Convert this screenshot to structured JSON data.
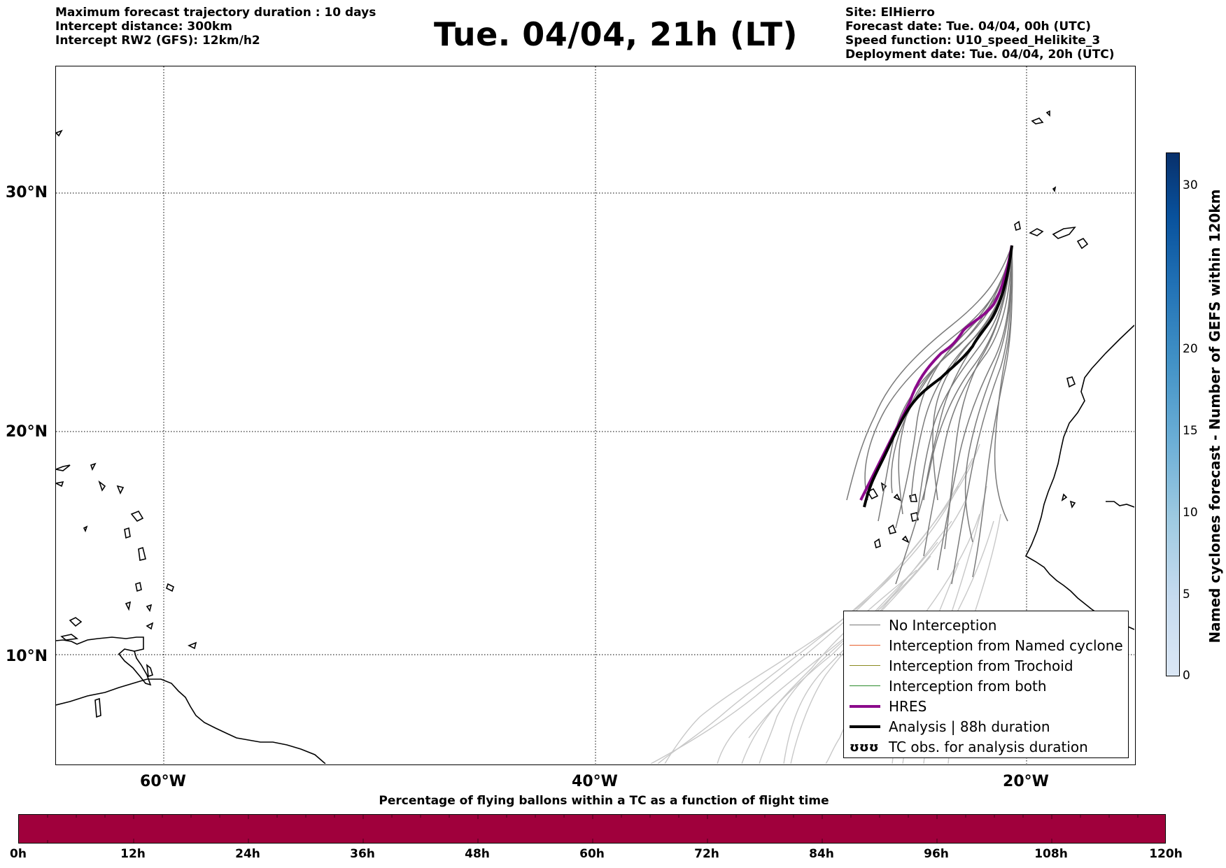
{
  "header": {
    "left": {
      "line1": "Maximum forecast trajectory duration : 10 days",
      "line2": "Intercept distance: 300km",
      "line3": "Intercept RW2 (GFS):  12km/h2"
    },
    "title": "Tue. 04/04, 21h (LT)",
    "right": {
      "line1": "Site: ElHierro",
      "line2": "Forecast date: Tue. 04/04, 00h (UTC)",
      "line3": "Speed function: U10_speed_Helikite_3",
      "line4": "Deployment date: Tue. 04/04, 20h (UTC)"
    }
  },
  "map": {
    "lat_labels": [
      "30°N",
      "20°N",
      "10°N"
    ],
    "lon_labels": [
      "60°W",
      "40°W",
      "20°W"
    ],
    "extent": {
      "lon_min": -65,
      "lon_max": -15,
      "lat_min": 5.3,
      "lat_max": 35.3
    }
  },
  "legend": {
    "items": [
      {
        "label": "No Interception",
        "color": "#777777",
        "style": "thin"
      },
      {
        "label": "Interception from Named cyclone",
        "color": "#e8602c",
        "style": "thin"
      },
      {
        "label": "Interception from Trochoid",
        "color": "#8a8a20",
        "style": "thin"
      },
      {
        "label": "Interception from both",
        "color": "#2a8a2a",
        "style": "thin"
      },
      {
        "label": "HRES",
        "color": "#8b0a8b",
        "style": "thick"
      },
      {
        "label": "Analysis | 88h duration",
        "color": "#000000",
        "style": "thick"
      },
      {
        "label": "TC obs. for analysis duration",
        "symbol": "ʊʊʊ"
      }
    ]
  },
  "colorbar": {
    "label": "Named cyclones forecast - Number of GEFS within 120km",
    "ticks": [
      "0",
      "5",
      "10",
      "15",
      "20",
      "30"
    ],
    "max": 32,
    "colors": [
      "#dbe7f5",
      "#c6dbef",
      "#9ecae1",
      "#6baed6",
      "#4292c6",
      "#2171b5",
      "#08519c",
      "#08306b"
    ]
  },
  "percentage_bar": {
    "title": "Percentage of flying ballons within a TC as a function of flight time",
    "color": "#a0003c",
    "ticks": [
      "0h",
      "12h",
      "24h",
      "36h",
      "48h",
      "60h",
      "72h",
      "84h",
      "96h",
      "108h",
      "120h"
    ]
  }
}
